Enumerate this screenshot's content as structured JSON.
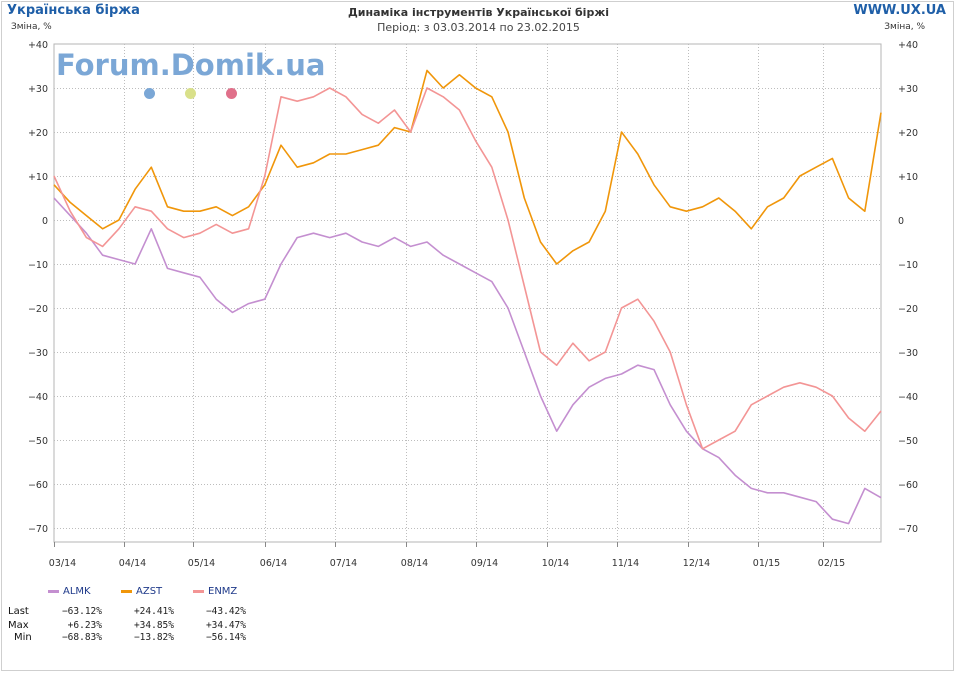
{
  "header": {
    "brand_left": "Українська біржа",
    "brand_right": "WWW.UX.UA",
    "title": "Динаміка інструментів Української біржі",
    "subtitle": "Період: з 03.03.2014 по 23.02.2015",
    "y_label_left": "Зміна, %",
    "y_label_right": "Зміна, %",
    "watermark": "Forum.Domik.ua",
    "watermark_dot_colors": [
      "#7ba7d6",
      "#d9e08a",
      "#e0708a"
    ]
  },
  "chart_data": {
    "type": "line",
    "ylim": [
      -72,
      40
    ],
    "yticks": [
      40,
      30,
      20,
      10,
      0,
      -10,
      -20,
      -30,
      -40,
      -50,
      -60,
      -70
    ],
    "ytick_labels": [
      "+40",
      "+30",
      "+20",
      "+10",
      "0",
      "−10",
      "−20",
      "−30",
      "−40",
      "−50",
      "−60",
      "−70"
    ],
    "xlim": [
      0,
      51
    ],
    "x_ticks": [
      0,
      4.3,
      8.6,
      13,
      17.3,
      21.7,
      26,
      30.4,
      34.7,
      39.1,
      43.4,
      47.4
    ],
    "x_tick_labels": [
      "03/14",
      "04/14",
      "05/14",
      "06/14",
      "07/14",
      "08/14",
      "09/14",
      "10/14",
      "11/14",
      "12/14",
      "01/15",
      "02/15"
    ],
    "grid": true,
    "series": [
      {
        "name": "ALMK",
        "color": "#c48fd0",
        "x": [
          0,
          1,
          2,
          3,
          4,
          5,
          6,
          7,
          8,
          9,
          10,
          11,
          12,
          13,
          14,
          15,
          16,
          17,
          18,
          19,
          20,
          21,
          22,
          23,
          24,
          25,
          26,
          27,
          28,
          29,
          30,
          31,
          32,
          33,
          34,
          35,
          36,
          37,
          38,
          39,
          40,
          41,
          42,
          43,
          44,
          45,
          46,
          47,
          48,
          49,
          50,
          51
        ],
        "y": [
          5,
          1,
          -3,
          -8,
          -9,
          -10,
          -2,
          -11,
          -12,
          -13,
          -18,
          -21,
          -19,
          -18,
          -10,
          -4,
          -3,
          -4,
          -3,
          -5,
          -6,
          -4,
          -6,
          -5,
          -8,
          -10,
          -12,
          -14,
          -20,
          -30,
          -40,
          -48,
          -42,
          -38,
          -36,
          -35,
          -33,
          -34,
          -42,
          -48,
          -52,
          -54,
          -58,
          -61,
          -62,
          -62,
          -63,
          -64,
          -68,
          -69,
          -61,
          -63.12
        ]
      },
      {
        "name": "AZST",
        "color": "#f0960a",
        "x": [
          0,
          1,
          2,
          3,
          4,
          5,
          6,
          7,
          8,
          9,
          10,
          11,
          12,
          13,
          14,
          15,
          16,
          17,
          18,
          19,
          20,
          21,
          22,
          23,
          24,
          25,
          26,
          27,
          28,
          29,
          30,
          31,
          32,
          33,
          34,
          35,
          36,
          37,
          38,
          39,
          40,
          41,
          42,
          43,
          44,
          45,
          46,
          47,
          48,
          49,
          50,
          51
        ],
        "y": [
          8,
          4,
          1,
          -2,
          0,
          7,
          12,
          3,
          2,
          2,
          3,
          1,
          3,
          8,
          17,
          12,
          13,
          15,
          15,
          16,
          17,
          21,
          20,
          34,
          30,
          33,
          30,
          28,
          20,
          5,
          -5,
          -10,
          -7,
          -5,
          2,
          20,
          15,
          8,
          3,
          2,
          3,
          5,
          2,
          -2,
          3,
          5,
          10,
          12,
          14,
          5,
          2,
          24.41
        ]
      },
      {
        "name": "ENMZ",
        "color": "#f39595",
        "x": [
          0,
          1,
          2,
          3,
          4,
          5,
          6,
          7,
          8,
          9,
          10,
          11,
          12,
          13,
          14,
          15,
          16,
          17,
          18,
          19,
          20,
          21,
          22,
          23,
          24,
          25,
          26,
          27,
          28,
          29,
          30,
          31,
          32,
          33,
          34,
          35,
          36,
          37,
          38,
          39,
          40,
          41,
          42,
          43,
          44,
          45,
          46,
          47,
          48,
          49,
          50,
          51
        ],
        "y": [
          10,
          2,
          -4,
          -6,
          -2,
          3,
          2,
          -2,
          -4,
          -3,
          -1,
          -3,
          -2,
          10,
          28,
          27,
          28,
          30,
          28,
          24,
          22,
          25,
          20,
          30,
          28,
          25,
          18,
          12,
          0,
          -15,
          -30,
          -33,
          -28,
          -32,
          -30,
          -20,
          -18,
          -23,
          -30,
          -42,
          -52,
          -50,
          -48,
          -42,
          -40,
          -38,
          -37,
          -38,
          -40,
          -45,
          -48,
          -43.42
        ]
      }
    ]
  },
  "legend": {
    "items": [
      {
        "name": "ALMK",
        "color": "#c48fd0"
      },
      {
        "name": "AZST",
        "color": "#f0960a"
      },
      {
        "name": "ENMZ",
        "color": "#f39595"
      }
    ],
    "rows": [
      {
        "label": "Last",
        "values": [
          "−63.12%",
          "+24.41%",
          "−43.42%"
        ]
      },
      {
        "label": "Max",
        "values": [
          "+6.23%",
          "+34.85%",
          "+34.47%"
        ]
      },
      {
        "label": "Min",
        "values": [
          "−68.83%",
          "−13.82%",
          "−56.14%"
        ]
      }
    ]
  }
}
